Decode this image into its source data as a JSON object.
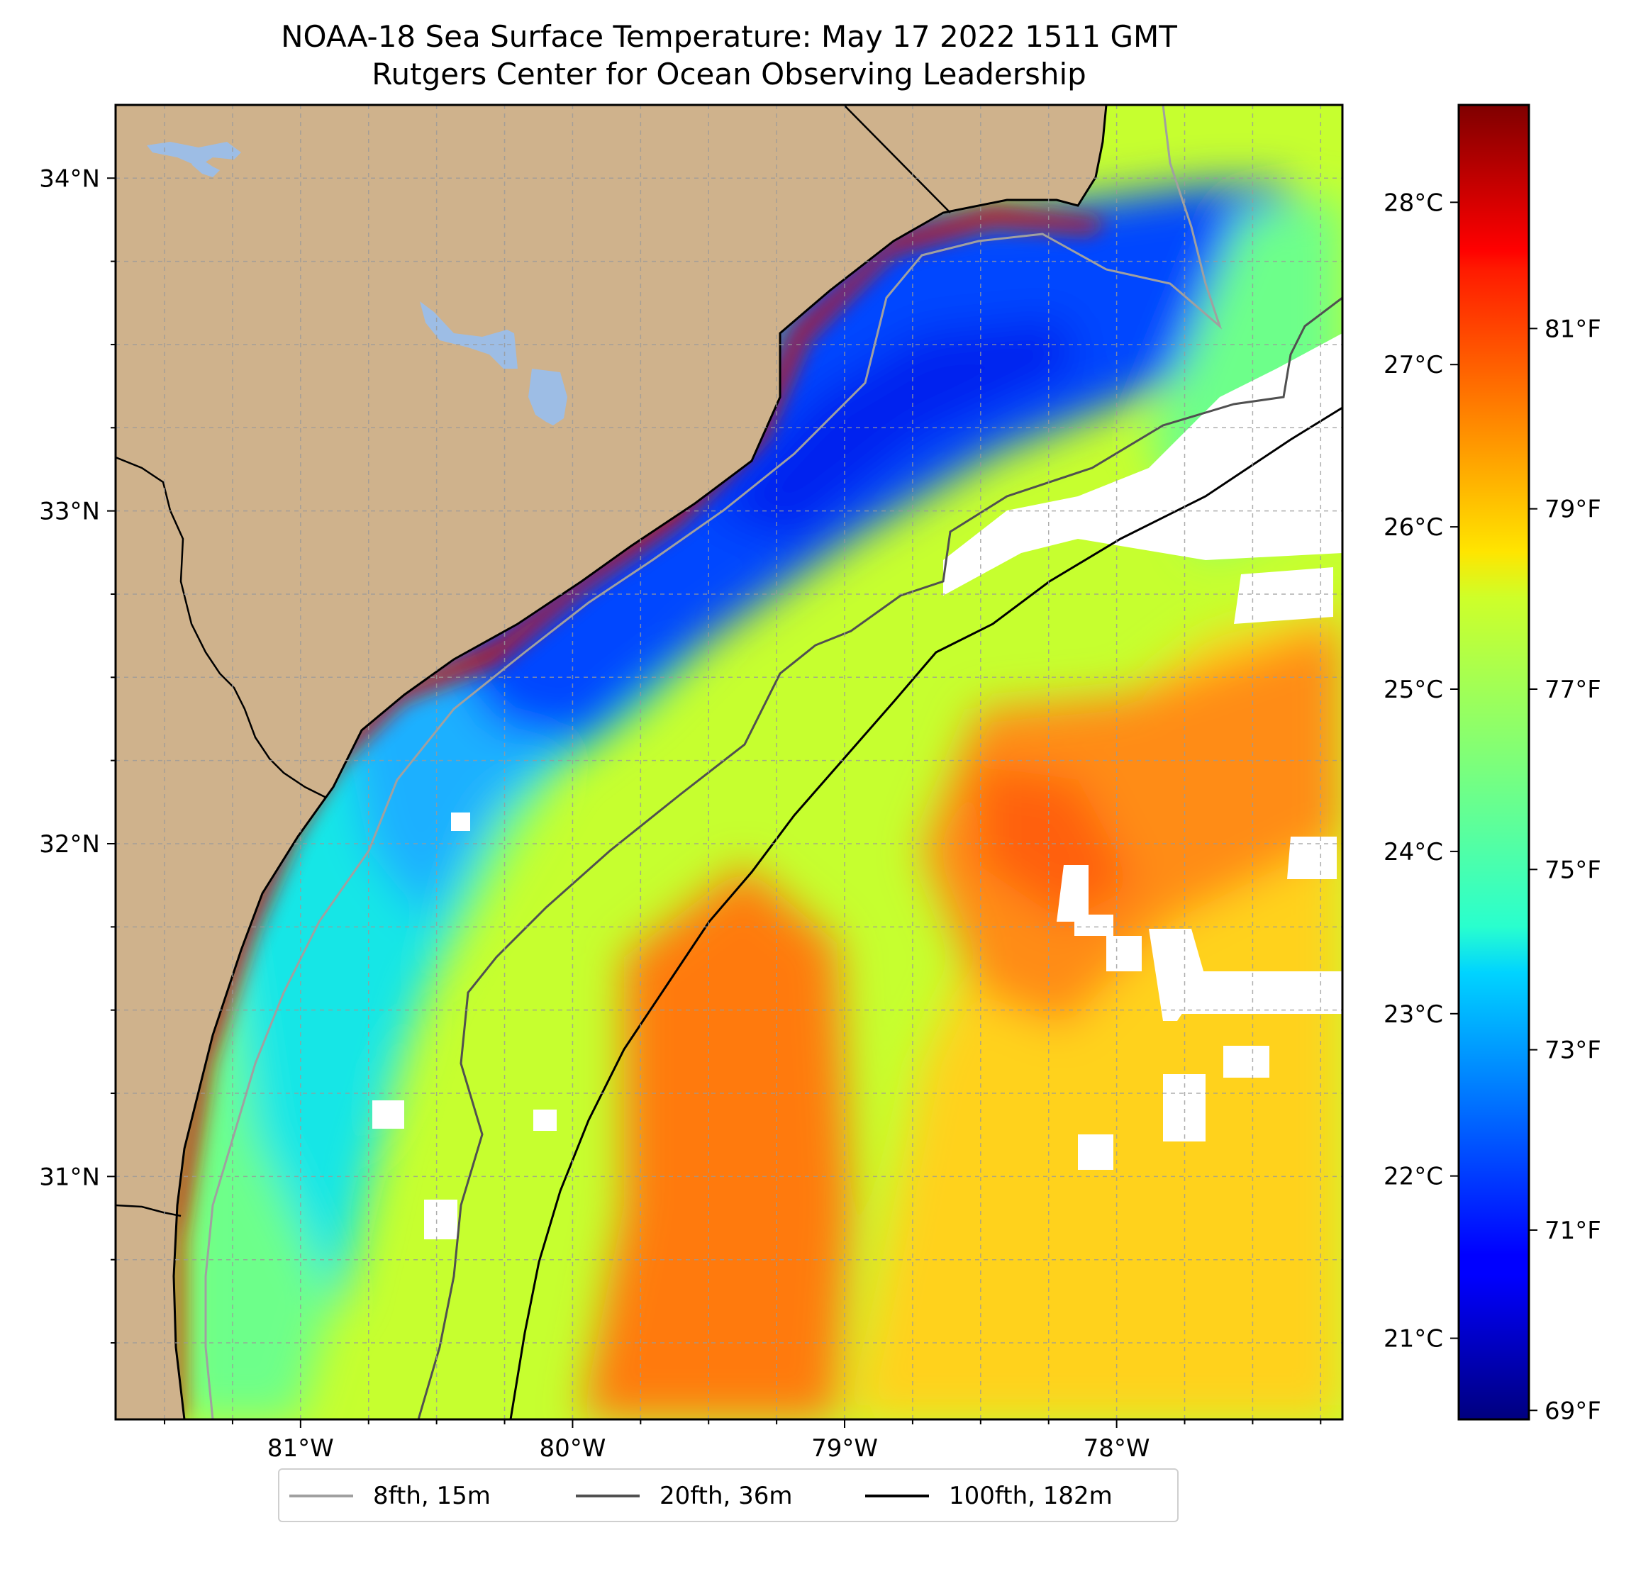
{
  "title": {
    "line1": "NOAA-18 Sea Surface Temperature: May 17 2022 1511 GMT",
    "line2": "Rutgers Center for Ocean Observing Leadership"
  },
  "map": {
    "lon_range": [
      -81.68,
      -77.17
    ],
    "lat_range": [
      30.27,
      34.22
    ],
    "lon_ticks": [
      {
        "value": -81,
        "label": "81°W"
      },
      {
        "value": -80,
        "label": "80°W"
      },
      {
        "value": -79,
        "label": "79°W"
      },
      {
        "value": -78,
        "label": "78°W"
      }
    ],
    "lat_ticks": [
      {
        "value": 31,
        "label": "31°N"
      },
      {
        "value": 32,
        "label": "32°N"
      },
      {
        "value": 33,
        "label": "33°N"
      },
      {
        "value": 34,
        "label": "34°N"
      }
    ],
    "grid": true,
    "colors": {
      "land": "#cfb28c",
      "lakes": "#9dbde5",
      "no_data": "#ffffff"
    }
  },
  "colorbar": {
    "colormap": "jet",
    "range_c": [
      20.5,
      28.6
    ],
    "celsius_ticks": [
      {
        "value": 21,
        "label": "21°C"
      },
      {
        "value": 22,
        "label": "22°C"
      },
      {
        "value": 23,
        "label": "23°C"
      },
      {
        "value": 24,
        "label": "24°C"
      },
      {
        "value": 25,
        "label": "25°C"
      },
      {
        "value": 26,
        "label": "26°C"
      },
      {
        "value": 27,
        "label": "27°C"
      },
      {
        "value": 28,
        "label": "28°C"
      }
    ],
    "fahrenheit_ticks": [
      {
        "value": 69,
        "label": "69°F"
      },
      {
        "value": 71,
        "label": "71°F"
      },
      {
        "value": 73,
        "label": "73°F"
      },
      {
        "value": 75,
        "label": "75°F"
      },
      {
        "value": 77,
        "label": "77°F"
      },
      {
        "value": 79,
        "label": "79°F"
      },
      {
        "value": 81,
        "label": "81°F"
      }
    ]
  },
  "legend": {
    "placement": "below",
    "entries": [
      {
        "label": "8fth, 15m",
        "color": "#a0a0a0"
      },
      {
        "label": "20fth, 36m",
        "color": "#505050"
      },
      {
        "label": "100fth, 182m",
        "color": "#000000"
      }
    ]
  }
}
